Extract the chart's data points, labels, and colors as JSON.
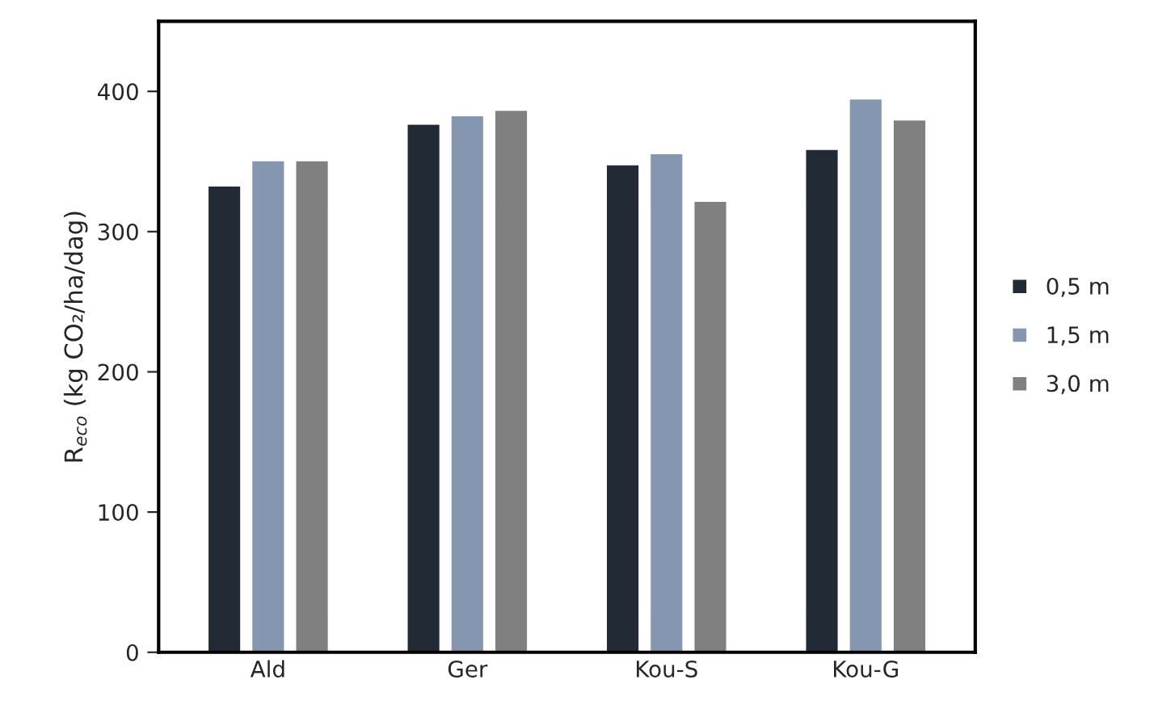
{
  "chart_data": {
    "type": "bar",
    "ylabel": "R$_{eco}$ (kg CO₂/ha/dag)",
    "categories": [
      "Ald",
      "Ger",
      "Kou-S",
      "Kou-G"
    ],
    "series": [
      {
        "name": "0,5 m",
        "color": "#222a35",
        "values": [
          333,
          377,
          348,
          359
        ]
      },
      {
        "name": "1,5 m",
        "color": "#8496b0",
        "values": [
          351,
          383,
          356,
          395
        ]
      },
      {
        "name": "3,0 m",
        "color": "#808080",
        "values": [
          351,
          387,
          322,
          380
        ]
      }
    ],
    "ylim": [
      0,
      450
    ],
    "yticks": [
      0,
      100,
      200,
      300,
      400
    ],
    "grid": false,
    "legend": "right"
  }
}
